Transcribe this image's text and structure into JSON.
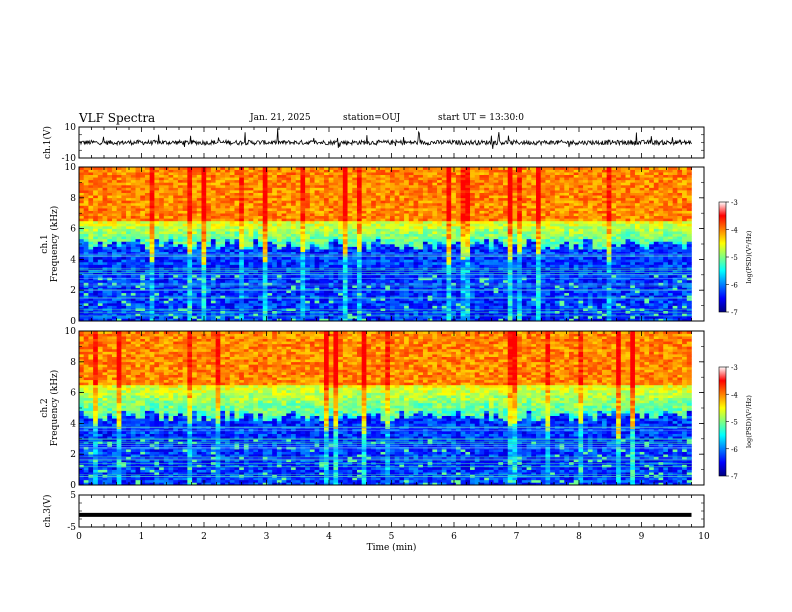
{
  "header": {
    "title": "VLF Spectra",
    "date": "Jan. 21, 2025",
    "station": "station=OUJ",
    "start_ut": "start UT = 13:30:0"
  },
  "colorbar": {
    "label": "log(PSD)(V²/Hz)",
    "ticks": [
      "-3",
      "-4",
      "-5",
      "-6",
      "-7"
    ],
    "range": [
      -7,
      -3
    ],
    "colormap": [
      "#000080",
      "#0000ff",
      "#0080ff",
      "#00ffff",
      "#80ff80",
      "#ffff00",
      "#ff8000",
      "#ff0000",
      "#ffffff"
    ]
  },
  "chart_data": [
    {
      "type": "line",
      "name": "ch1-waveform",
      "ylabel": "ch.1(V)",
      "ylim": [
        -10,
        10
      ],
      "yticks": [
        "10",
        "-10"
      ],
      "xlim": [
        0,
        10
      ],
      "baseline_v": 0,
      "noise_amplitude_v": 3
    },
    {
      "type": "heatmap",
      "name": "ch1-spectrogram",
      "ylabel": "ch.1\nFrequency (kHz)",
      "ylim": [
        0,
        10
      ],
      "yticks": [
        "0",
        "2",
        "4",
        "6",
        "8",
        "10"
      ],
      "xlim": [
        0,
        10
      ],
      "data_end_min": 9.8,
      "band_boundaries_khz": [
        5.0,
        6.5
      ],
      "mean_log_psd_by_band": [
        -6.2,
        -5.0,
        -3.6
      ]
    },
    {
      "type": "heatmap",
      "name": "ch2-spectrogram",
      "ylabel": "ch.2\nFrequency (kHz)",
      "ylim": [
        0,
        10
      ],
      "yticks": [
        "0",
        "2",
        "4",
        "6",
        "8",
        "10"
      ],
      "xlim": [
        0,
        10
      ],
      "data_end_min": 9.8,
      "band_boundaries_khz": [
        4.5,
        6.5
      ],
      "mean_log_psd_by_band": [
        -6.2,
        -5.0,
        -3.6
      ]
    },
    {
      "type": "line",
      "name": "ch3-waveform",
      "ylabel": "ch.3(V)",
      "ylim": [
        -5,
        5
      ],
      "yticks": [
        "5",
        "-5"
      ],
      "xlim": [
        0,
        10
      ],
      "xlabel": "Time (min)",
      "xticks": [
        "0",
        "1",
        "2",
        "3",
        "4",
        "5",
        "6",
        "7",
        "8",
        "9",
        "10"
      ],
      "constant_value_v": -1.2
    }
  ]
}
